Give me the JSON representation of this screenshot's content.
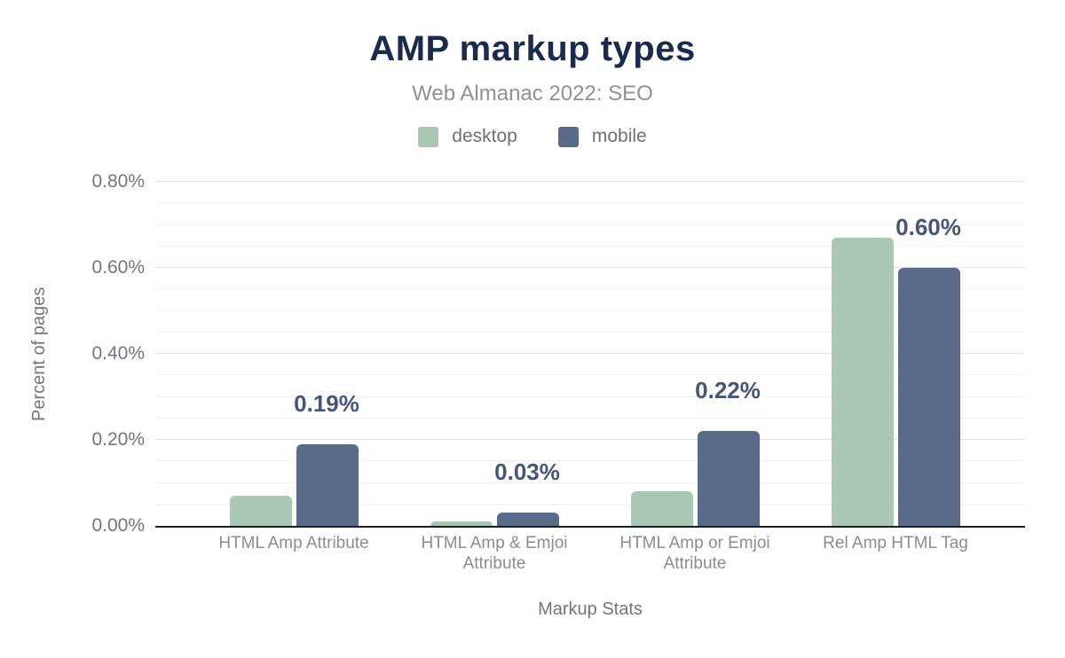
{
  "chart_data": {
    "type": "bar",
    "title": "AMP markup types",
    "subtitle": "Web Almanac 2022: SEO",
    "xlabel": "Markup Stats",
    "ylabel": "Percent of pages",
    "categories": [
      "HTML Amp Attribute",
      "HTML Amp & Emjoi Attribute",
      "HTML Amp or Emjoi Attribute",
      "Rel Amp HTML Tag"
    ],
    "series": [
      {
        "name": "desktop",
        "color": "#a8c8b5",
        "values": [
          0.07,
          0.01,
          0.08,
          0.67
        ]
      },
      {
        "name": "mobile",
        "color": "#5a6b8a",
        "values": [
          0.19,
          0.03,
          0.22,
          0.6
        ],
        "labels": [
          "0.19%",
          "0.03%",
          "0.22%",
          "0.60%"
        ]
      }
    ],
    "ylim": [
      0,
      0.8
    ],
    "y_ticks": [
      "0.00%",
      "0.20%",
      "0.40%",
      "0.60%",
      "0.80%"
    ],
    "grid": {
      "major_step": 0.2,
      "minor_step": 0.05,
      "shown": true
    },
    "legend_position": "top",
    "colors": {
      "title": "#1b2b4e",
      "subtitle": "#909096",
      "value_label": "#44567a",
      "axis_text": "#74747c",
      "baseline": "#1f1f1f"
    }
  }
}
